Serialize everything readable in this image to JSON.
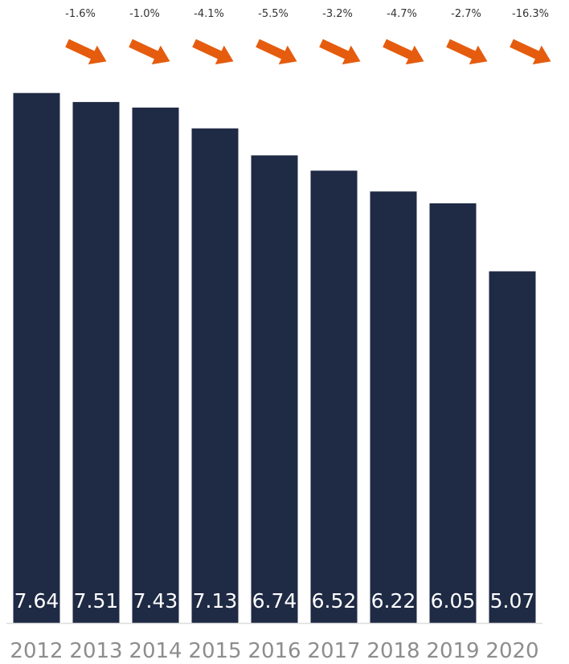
{
  "chart_data": {
    "type": "bar",
    "categories": [
      "2012",
      "2013",
      "2014",
      "2015",
      "2016",
      "2017",
      "2018",
      "2019",
      "2020"
    ],
    "values": [
      7.64,
      7.51,
      7.43,
      7.13,
      6.74,
      6.52,
      6.22,
      6.05,
      5.07
    ],
    "value_labels": [
      "7.64",
      "7.51",
      "7.43",
      "7.13",
      "6.74",
      "6.52",
      "6.22",
      "6.05",
      "5.07"
    ],
    "changes": [
      "-1.6%",
      "-1.0%",
      "-4.1%",
      "-5.5%",
      "-3.2%",
      "-4.7%",
      "-2.7%",
      "-16.3%"
    ],
    "change_icon": "arrow-down-right-icon",
    "title": "",
    "xlabel": "",
    "ylabel": "",
    "ylim": [
      0,
      8.15
    ],
    "grid": false,
    "legend": "none",
    "colors": {
      "bar": "#1f2a44",
      "arrow": "#e55c0e",
      "axis": "#dddddd",
      "tick_text": "#8d8d8d",
      "value_text": "#ffffff",
      "change_text": "#333333"
    }
  }
}
